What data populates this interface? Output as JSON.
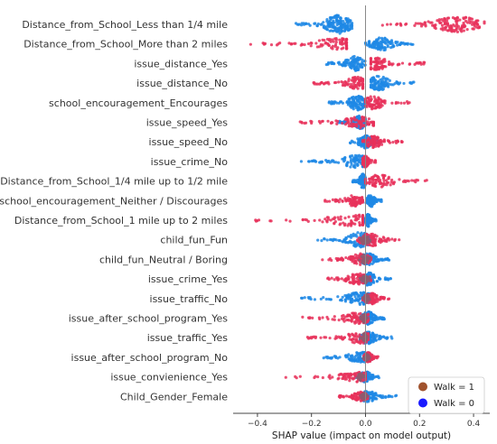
{
  "chart_data": {
    "type": "scatter",
    "subtype": "shap-beeswarm",
    "title": "",
    "xlabel": "SHAP value (impact on model output)",
    "ylabel": "",
    "xlim": [
      -0.49,
      0.46
    ],
    "xticks": [
      -0.4,
      -0.2,
      0.0,
      0.2,
      0.4
    ],
    "tick_labels": [
      "−0.4",
      "−0.2",
      "0.0",
      "0.2",
      "0.4"
    ],
    "zero_line": true,
    "grid": false,
    "colors": {
      "walk_1": "#e8315a",
      "walk_0": "#1e88e5",
      "mixed": "#8e5a6e"
    },
    "legend": {
      "position": "bottom-right",
      "entries": [
        {
          "label": "Walk = 1",
          "color": "#a0522d"
        },
        {
          "label": "Walk = 0",
          "color": "#1a1aff"
        }
      ]
    },
    "features": [
      {
        "name": "Distance_from_School_Less than 1/4 mile",
        "blue_range": [
          -0.27,
          -0.05
        ],
        "red_range": [
          0.05,
          0.44
        ],
        "blue_mode": -0.1,
        "red_mode": 0.34,
        "width": 9
      },
      {
        "name": "Distance_from_School_More than 2 miles",
        "blue_range": [
          0.0,
          0.18
        ],
        "red_range": [
          -0.45,
          -0.07
        ],
        "blue_mode": 0.06,
        "red_mode": -0.1,
        "width": 6
      },
      {
        "name": "issue_distance_Yes",
        "blue_range": [
          -0.15,
          0.0
        ],
        "red_range": [
          0.02,
          0.22
        ],
        "blue_mode": -0.04,
        "red_mode": 0.04,
        "width": 7
      },
      {
        "name": "issue_distance_No",
        "blue_range": [
          0.02,
          0.18
        ],
        "red_range": [
          -0.2,
          -0.01
        ],
        "blue_mode": 0.05,
        "red_mode": -0.03,
        "width": 7
      },
      {
        "name": "school_encouragement_Encourages",
        "blue_range": [
          -0.14,
          0.0
        ],
        "red_range": [
          0.0,
          0.17
        ],
        "blue_mode": -0.03,
        "red_mode": 0.03,
        "width": 7
      },
      {
        "name": "issue_speed_Yes",
        "blue_range": [
          -0.1,
          0.0
        ],
        "red_range": [
          -0.25,
          0.03
        ],
        "blue_mode": -0.02,
        "red_mode": -0.02,
        "width": 6
      },
      {
        "name": "issue_speed_No",
        "blue_range": [
          -0.06,
          0.06
        ],
        "red_range": [
          -0.01,
          0.14
        ],
        "blue_mode": 0.0,
        "red_mode": 0.03,
        "width": 6
      },
      {
        "name": "issue_crime_No",
        "blue_range": [
          -0.26,
          -0.01
        ],
        "red_range": [
          -0.01,
          0.04
        ],
        "blue_mode": -0.03,
        "red_mode": 0.0,
        "width": 6
      },
      {
        "name": "Distance_from_School_1/4 mile up to 1/2 mile",
        "blue_range": [
          -0.05,
          0.0
        ],
        "red_range": [
          0.0,
          0.23
        ],
        "blue_mode": -0.01,
        "red_mode": 0.05,
        "width": 7
      },
      {
        "name": "school_encouragement_Neither / Discourages",
        "blue_range": [
          0.0,
          0.06
        ],
        "red_range": [
          -0.15,
          -0.01
        ],
        "blue_mode": 0.02,
        "red_mode": -0.04,
        "width": 6
      },
      {
        "name": "Distance_from_School_1 mile up to 2 miles",
        "blue_range": [
          0.0,
          0.04
        ],
        "red_range": [
          -0.42,
          -0.01
        ],
        "blue_mode": 0.01,
        "red_mode": -0.05,
        "width": 6
      },
      {
        "name": "child_fun_Fun",
        "blue_range": [
          -0.18,
          0.03
        ],
        "red_range": [
          -0.03,
          0.15
        ],
        "blue_mode": -0.02,
        "red_mode": 0.02,
        "width": 7
      },
      {
        "name": "child_fun_Neutral / Boring",
        "blue_range": [
          -0.03,
          0.09
        ],
        "red_range": [
          -0.16,
          0.02
        ],
        "blue_mode": 0.01,
        "red_mode": -0.02,
        "width": 6
      },
      {
        "name": "issue_crime_Yes",
        "blue_range": [
          -0.02,
          0.1
        ],
        "red_range": [
          -0.14,
          0.02
        ],
        "blue_mode": 0.01,
        "red_mode": -0.03,
        "width": 6
      },
      {
        "name": "issue_traffic_No",
        "blue_range": [
          -0.24,
          0.02
        ],
        "red_range": [
          -0.01,
          0.1
        ],
        "blue_mode": -0.02,
        "red_mode": 0.02,
        "width": 6
      },
      {
        "name": "issue_after_school_program_Yes",
        "blue_range": [
          -0.02,
          0.08
        ],
        "red_range": [
          -0.24,
          0.01
        ],
        "blue_mode": 0.01,
        "red_mode": -0.03,
        "width": 6
      },
      {
        "name": "issue_traffic_Yes",
        "blue_range": [
          -0.02,
          0.1
        ],
        "red_range": [
          -0.22,
          0.01
        ],
        "blue_mode": 0.01,
        "red_mode": -0.02,
        "width": 6
      },
      {
        "name": "issue_after_school_program_No",
        "blue_range": [
          -0.16,
          0.02
        ],
        "red_range": [
          -0.01,
          0.05
        ],
        "blue_mode": -0.02,
        "red_mode": 0.01,
        "width": 5
      },
      {
        "name": "issue_convienience_Yes",
        "blue_range": [
          -0.04,
          0.05
        ],
        "red_range": [
          -0.3,
          0.0
        ],
        "blue_mode": 0.0,
        "red_mode": -0.03,
        "width": 5
      },
      {
        "name": "Child_Gender_Female",
        "blue_range": [
          -0.02,
          0.12
        ],
        "red_range": [
          -0.1,
          0.01
        ],
        "blue_mode": 0.01,
        "red_mode": -0.02,
        "width": 5
      }
    ]
  }
}
